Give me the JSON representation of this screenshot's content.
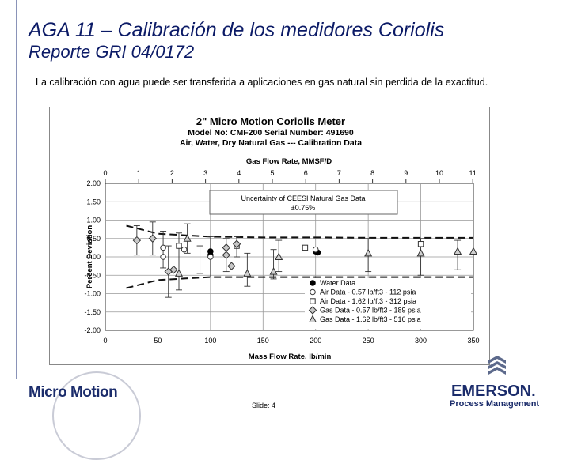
{
  "header": {
    "title": "AGA 11 – Calibración de los medidores Coriolis",
    "subtitle": "Reporte GRI 04/0172",
    "description": "La calibración con agua puede ser transferida a aplicaciones en gas natural sin perdida de la exactitud."
  },
  "footer": {
    "slide_label": "Slide: 4",
    "left_logo": "Micro Motion",
    "right_logo": "EMERSON.",
    "right_logo_sub": "Process Management"
  },
  "colors": {
    "title": "#0b1a66",
    "logo": "#1b2c6b"
  },
  "chart_data": {
    "type": "scatter",
    "title_lines": [
      "2\" Micro Motion Coriolis Meter",
      "Model No: CMF200     Serial Number: 491690",
      "Air, Water, Dry Natural Gas --- Calibration Data"
    ],
    "xlabel": "Mass Flow Rate, lb/min",
    "x2label": "Gas Flow Rate, MMSF/D",
    "ylabel": "Percent Deviation",
    "xlim": [
      0,
      350
    ],
    "ylim": [
      -2.0,
      2.0
    ],
    "xticks": [
      "0",
      "50",
      "100",
      "150",
      "200",
      "250",
      "300",
      "350"
    ],
    "yticks": [
      "2.00",
      "1.50",
      "1.00",
      "0.50",
      "0.00",
      "-0.50",
      "-1.00",
      "-1.50",
      "-2.00"
    ],
    "x2ticks": [
      "0",
      "1",
      "2",
      "3",
      "4",
      "5",
      "6",
      "7",
      "8",
      "9",
      "10",
      "11"
    ],
    "grid": true,
    "annotation": {
      "line1": "Uncertainty of CEESI Natural Gas Data",
      "line2": "±0.75%"
    },
    "uncertainty_band": {
      "upper": [
        [
          20,
          0.85
        ],
        [
          50,
          0.63
        ],
        [
          100,
          0.55
        ],
        [
          150,
          0.53
        ],
        [
          200,
          0.53
        ],
        [
          250,
          0.52
        ],
        [
          300,
          0.52
        ],
        [
          350,
          0.52
        ]
      ],
      "lower": [
        [
          20,
          -0.85
        ],
        [
          50,
          -0.63
        ],
        [
          100,
          -0.55
        ],
        [
          150,
          -0.55
        ],
        [
          200,
          -0.55
        ],
        [
          250,
          -0.55
        ],
        [
          300,
          -0.55
        ],
        [
          350,
          -0.55
        ]
      ]
    },
    "legend": {
      "placement": "lower-right",
      "entries": [
        "Water Data",
        "Air Data  -  0.57 lb/ft3  -  112 psia",
        "Air Data  -  1.62 lb/ft3  -  312 psia",
        "Gas Data - 0.57 lb/ft3  -  189 psia",
        "Gas Data - 1.62 lb/ft3  -  516 psia"
      ]
    },
    "series": [
      {
        "name": "Water Data",
        "marker": "circle-filled",
        "points": [
          [
            100,
            0.15
          ],
          [
            100,
            0.05
          ],
          [
            200,
            0.15
          ],
          [
            202,
            0.12
          ]
        ]
      },
      {
        "name": "Air Data  -  0.57 lb/ft3  -  112 psia",
        "marker": "circle-open",
        "points": [
          [
            55,
            0.25
          ],
          [
            55,
            0.0
          ],
          [
            75,
            0.2
          ],
          [
            100,
            0.0
          ],
          [
            200,
            0.2
          ]
        ]
      },
      {
        "name": "Air Data  -  1.62 lb/ft3  -  312 psia",
        "marker": "square-open",
        "points": [
          [
            70,
            0.3
          ],
          [
            125,
            0.3
          ],
          [
            190,
            0.25
          ],
          [
            300,
            0.35
          ]
        ]
      },
      {
        "name": "Gas Data - 0.57 lb/ft3  -  189 psia",
        "marker": "diamond-open",
        "points": [
          [
            30,
            0.45
          ],
          [
            45,
            0.5
          ],
          [
            60,
            -0.4
          ],
          [
            65,
            -0.35
          ],
          [
            115,
            0.25
          ],
          [
            115,
            0.05
          ],
          [
            120,
            -0.25
          ],
          [
            125,
            0.35
          ]
        ]
      },
      {
        "name": "Gas Data - 1.62 lb/ft3  -  516 psia",
        "marker": "triangle-open",
        "points": [
          [
            70,
            -0.45
          ],
          [
            78,
            0.5
          ],
          [
            135,
            -0.45
          ],
          [
            160,
            -0.4
          ],
          [
            165,
            0.0
          ],
          [
            250,
            0.1
          ],
          [
            300,
            0.1
          ],
          [
            335,
            0.15
          ],
          [
            350,
            0.15
          ]
        ]
      }
    ],
    "error_bars": [
      [
        30,
        0.85,
        0.05
      ],
      [
        45,
        0.95,
        0.05
      ],
      [
        55,
        0.7,
        -0.3
      ],
      [
        60,
        0.3,
        -1.1
      ],
      [
        70,
        0.65,
        -0.9
      ],
      [
        78,
        0.9,
        0.1
      ],
      [
        90,
        0.3,
        -0.45
      ],
      [
        100,
        0.55,
        -0.55
      ],
      [
        115,
        0.5,
        -0.4
      ],
      [
        125,
        0.55,
        0.0
      ],
      [
        135,
        0.1,
        -0.8
      ],
      [
        160,
        0.2,
        -0.6
      ],
      [
        165,
        0.45,
        -0.4
      ],
      [
        250,
        0.5,
        -0.4
      ],
      [
        300,
        0.5,
        -0.5
      ],
      [
        335,
        0.45,
        -0.35
      ]
    ]
  }
}
